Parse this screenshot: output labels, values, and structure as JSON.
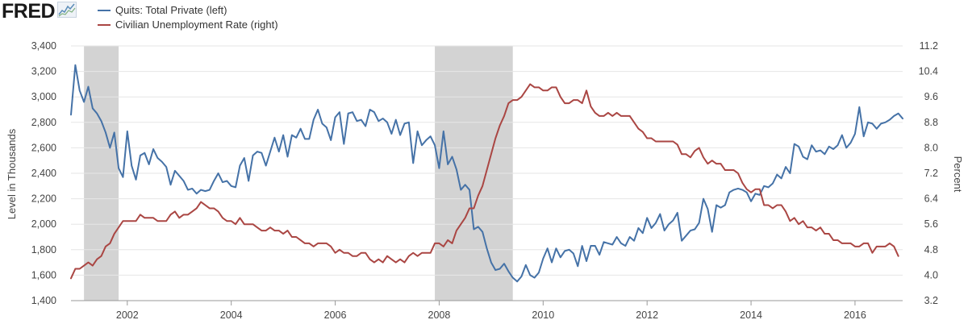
{
  "header": {
    "logo_text": "FRED",
    "logo_icon": "chart-line-icon"
  },
  "chart_data": {
    "type": "line",
    "series": [
      {
        "name": "Quits: Total Private (left)",
        "color": "#4572a7",
        "axis": "left",
        "monthly_start": "2000-12",
        "values": [
          2860,
          3250,
          3050,
          2960,
          3080,
          2910,
          2870,
          2810,
          2720,
          2600,
          2720,
          2440,
          2370,
          2730,
          2460,
          2350,
          2540,
          2560,
          2470,
          2590,
          2520,
          2490,
          2450,
          2310,
          2420,
          2380,
          2340,
          2270,
          2280,
          2240,
          2270,
          2260,
          2270,
          2340,
          2400,
          2330,
          2340,
          2300,
          2290,
          2460,
          2520,
          2340,
          2540,
          2570,
          2560,
          2460,
          2570,
          2680,
          2570,
          2700,
          2530,
          2700,
          2680,
          2750,
          2670,
          2670,
          2820,
          2900,
          2790,
          2760,
          2660,
          2840,
          2880,
          2630,
          2870,
          2880,
          2810,
          2820,
          2770,
          2900,
          2880,
          2810,
          2830,
          2800,
          2710,
          2820,
          2700,
          2790,
          2800,
          2480,
          2730,
          2620,
          2660,
          2690,
          2620,
          2440,
          2730,
          2470,
          2530,
          2430,
          2270,
          2310,
          2270,
          1960,
          1980,
          1940,
          1810,
          1700,
          1640,
          1650,
          1690,
          1630,
          1580,
          1550,
          1590,
          1680,
          1600,
          1580,
          1620,
          1730,
          1810,
          1700,
          1810,
          1740,
          1790,
          1800,
          1770,
          1670,
          1830,
          1710,
          1830,
          1830,
          1760,
          1860,
          1850,
          1840,
          1900,
          1850,
          1830,
          1900,
          1870,
          1970,
          1930,
          2050,
          1970,
          2010,
          2080,
          1950,
          2000,
          2030,
          2090,
          1870,
          1910,
          1950,
          1960,
          2010,
          2200,
          2120,
          1940,
          2150,
          2130,
          2150,
          2250,
          2270,
          2280,
          2270,
          2250,
          2180,
          2240,
          2230,
          2300,
          2290,
          2320,
          2390,
          2360,
          2450,
          2400,
          2630,
          2610,
          2530,
          2510,
          2620,
          2570,
          2580,
          2550,
          2610,
          2590,
          2620,
          2700,
          2600,
          2640,
          2710,
          2920,
          2690,
          2800,
          2790,
          2750,
          2790,
          2800,
          2820,
          2850,
          2870,
          2830
        ]
      },
      {
        "name": "Civilian Unemployment Rate (right)",
        "color": "#aa4643",
        "axis": "right",
        "monthly_start": "2000-12",
        "values": [
          3.9,
          4.2,
          4.2,
          4.3,
          4.4,
          4.3,
          4.5,
          4.6,
          4.9,
          5.0,
          5.3,
          5.5,
          5.7,
          5.7,
          5.7,
          5.7,
          5.9,
          5.8,
          5.8,
          5.8,
          5.7,
          5.7,
          5.7,
          5.9,
          6.0,
          5.8,
          5.9,
          5.9,
          6.0,
          6.1,
          6.3,
          6.2,
          6.1,
          6.1,
          6.0,
          5.8,
          5.7,
          5.7,
          5.6,
          5.8,
          5.6,
          5.6,
          5.6,
          5.5,
          5.4,
          5.4,
          5.5,
          5.4,
          5.4,
          5.3,
          5.4,
          5.2,
          5.2,
          5.1,
          5.0,
          5.0,
          4.9,
          5.0,
          5.0,
          5.0,
          4.9,
          4.7,
          4.8,
          4.7,
          4.7,
          4.6,
          4.6,
          4.7,
          4.7,
          4.5,
          4.4,
          4.5,
          4.4,
          4.6,
          4.5,
          4.4,
          4.5,
          4.4,
          4.6,
          4.7,
          4.6,
          4.7,
          4.7,
          4.7,
          5.0,
          5.0,
          4.9,
          5.1,
          5.0,
          5.4,
          5.6,
          5.8,
          6.1,
          6.1,
          6.5,
          6.8,
          7.3,
          7.8,
          8.3,
          8.7,
          9.0,
          9.4,
          9.5,
          9.5,
          9.6,
          9.8,
          10.0,
          9.9,
          9.9,
          9.8,
          9.8,
          9.9,
          9.9,
          9.6,
          9.4,
          9.4,
          9.5,
          9.5,
          9.4,
          9.8,
          9.3,
          9.1,
          9.0,
          9.0,
          9.1,
          9.0,
          9.1,
          9.0,
          9.0,
          9.0,
          8.8,
          8.6,
          8.5,
          8.3,
          8.3,
          8.2,
          8.2,
          8.2,
          8.2,
          8.2,
          8.1,
          7.8,
          7.8,
          7.7,
          7.9,
          8.0,
          7.7,
          7.5,
          7.6,
          7.5,
          7.5,
          7.3,
          7.3,
          7.3,
          7.2,
          6.9,
          6.7,
          6.6,
          6.7,
          6.7,
          6.2,
          6.2,
          6.1,
          6.2,
          6.2,
          6.0,
          5.7,
          5.8,
          5.6,
          5.7,
          5.5,
          5.5,
          5.4,
          5.5,
          5.3,
          5.3,
          5.1,
          5.1,
          5.0,
          5.0,
          5.0,
          4.9,
          4.9,
          5.0,
          5.0,
          4.7,
          4.9,
          4.9,
          4.9,
          5.0,
          4.9,
          4.6
        ]
      }
    ],
    "recessions": [
      [
        "2001-03",
        "2001-11"
      ],
      [
        "2007-12",
        "2009-06"
      ]
    ],
    "x_ticks": [
      "2002",
      "2004",
      "2006",
      "2008",
      "2010",
      "2012",
      "2014",
      "2016"
    ],
    "y_left": {
      "label": "Level in Thousands",
      "ticks": [
        "1,400",
        "1,600",
        "1,800",
        "2,000",
        "2,200",
        "2,400",
        "2,600",
        "2,800",
        "3,000",
        "3,200",
        "3,400"
      ],
      "ylim": [
        1400,
        3400
      ]
    },
    "y_right": {
      "label": "Percent",
      "ticks": [
        "3.2",
        "4.0",
        "4.8",
        "5.6",
        "6.4",
        "7.2",
        "8.0",
        "8.8",
        "9.6",
        "10.4",
        "11.2"
      ],
      "ylim": [
        3.2,
        11.2
      ]
    },
    "grid": "horizontal",
    "legend_position": "top-left",
    "recession_color": "#d3d3d3",
    "grid_color": "#e6e6e6"
  }
}
